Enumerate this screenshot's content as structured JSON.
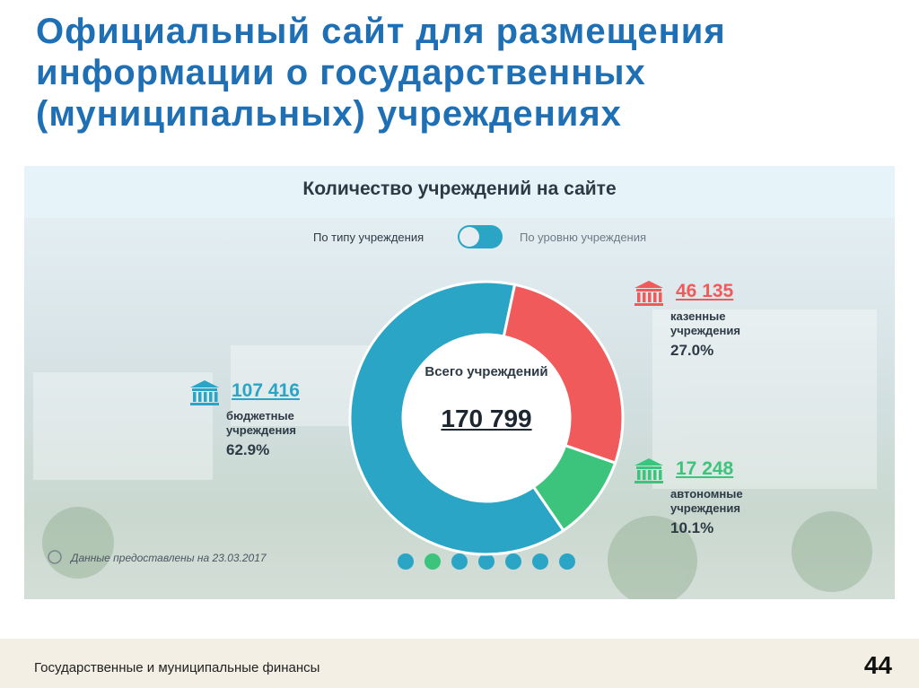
{
  "header": {
    "title_lines": [
      "Официальный сайт для размещения",
      "информации о государственных",
      "(муниципальных) учреждениях"
    ]
  },
  "screenshot": {
    "toggle_left": "По типу учреждения",
    "toggle_right": "По уровню учреждения",
    "note": "Данные предоставлены на 23.03.2017"
  },
  "chart_data": {
    "type": "pie",
    "title": "Количество учреждений на сайте",
    "categories": [
      "бюджетные учреждения",
      "казенные учреждения",
      "автономные учреждения"
    ],
    "values": [
      107416,
      46135,
      17248
    ],
    "value_labels": [
      "107 416",
      "46 135",
      "17 248"
    ],
    "shares": [
      62.9,
      27.0,
      10.1
    ],
    "share_labels": [
      "62.9%",
      "27.0%",
      "10.1%"
    ],
    "colors": [
      "#2aa5c5",
      "#f05a5a",
      "#3cc47c"
    ],
    "total_title": "Всего учреждений",
    "total": 170799,
    "total_label": "170 799"
  },
  "footer": {
    "text": "Государственные и муниципальные финансы",
    "page_number": 44
  }
}
